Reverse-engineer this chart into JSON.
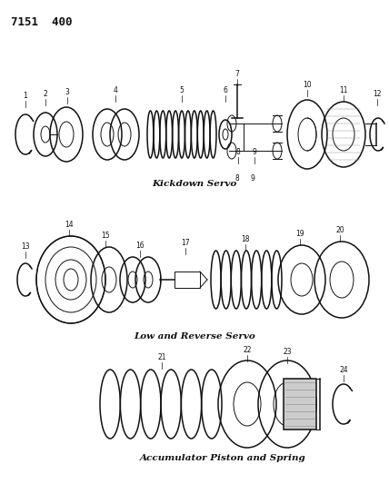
{
  "title": "7151  400",
  "background_color": "#ffffff",
  "text_color": "#111111",
  "section1_label": "Kickdown Servo",
  "section2_label": "Low and Reverse Servo",
  "section3_label": "Accumulator Piston and Spring",
  "figsize": [
    4.28,
    5.33
  ],
  "dpi": 100
}
